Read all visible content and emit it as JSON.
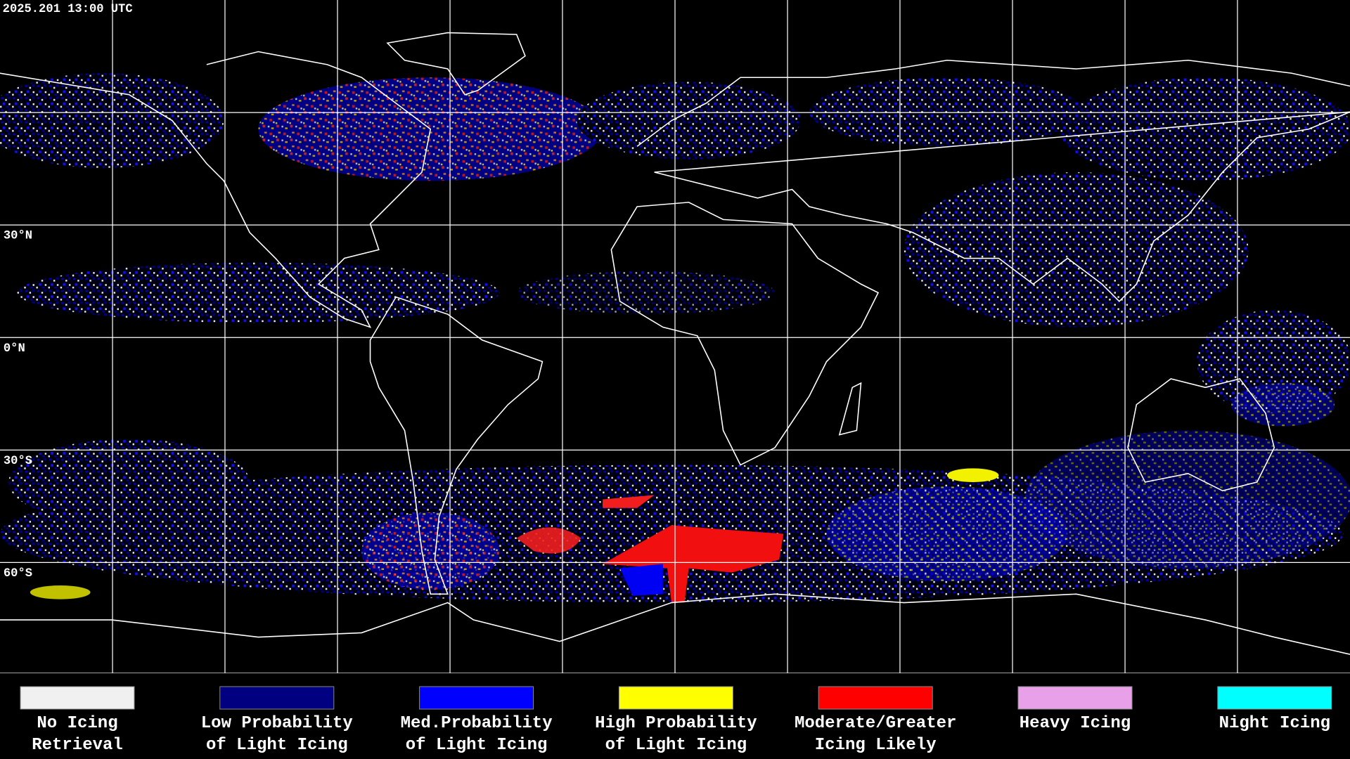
{
  "header": {
    "timestamp": "2025.201 13:00 UTC"
  },
  "map": {
    "lat_labels": [
      "30°N",
      "0°N",
      "30°S",
      "60°S"
    ]
  },
  "legend": {
    "items": [
      {
        "lines": [
          "No Icing",
          "Retrieval"
        ],
        "color": "#f0f0f0"
      },
      {
        "lines": [
          "Low Probability",
          "of Light Icing"
        ],
        "color": "#000080"
      },
      {
        "lines": [
          "Med.Probability",
          "of Light Icing"
        ],
        "color": "#0000ff"
      },
      {
        "lines": [
          "High Probability",
          "of Light Icing"
        ],
        "color": "#ffff00"
      },
      {
        "lines": [
          "Moderate/Greater",
          "Icing Likely"
        ],
        "color": "#ff0000"
      },
      {
        "lines": [
          "Heavy Icing"
        ],
        "color": "#e8a0e8"
      },
      {
        "lines": [
          "Night Icing"
        ],
        "color": "#00ffff"
      }
    ]
  }
}
